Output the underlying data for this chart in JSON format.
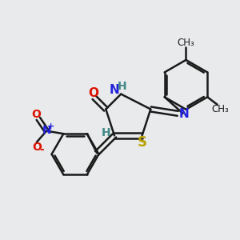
{
  "bg_color": "#e8eaeb",
  "bond_color": "#1a1a1a",
  "S_color": "#b8a000",
  "N_color": "#2222dd",
  "O_color": "#dd1100",
  "H_color": "#448888",
  "lw": 1.8,
  "dbl_sep": 0.12,
  "fig_width": 3.0,
  "fig_height": 3.0,
  "dpi": 100,
  "xlim": [
    0,
    10
  ],
  "ylim": [
    0,
    10
  ]
}
